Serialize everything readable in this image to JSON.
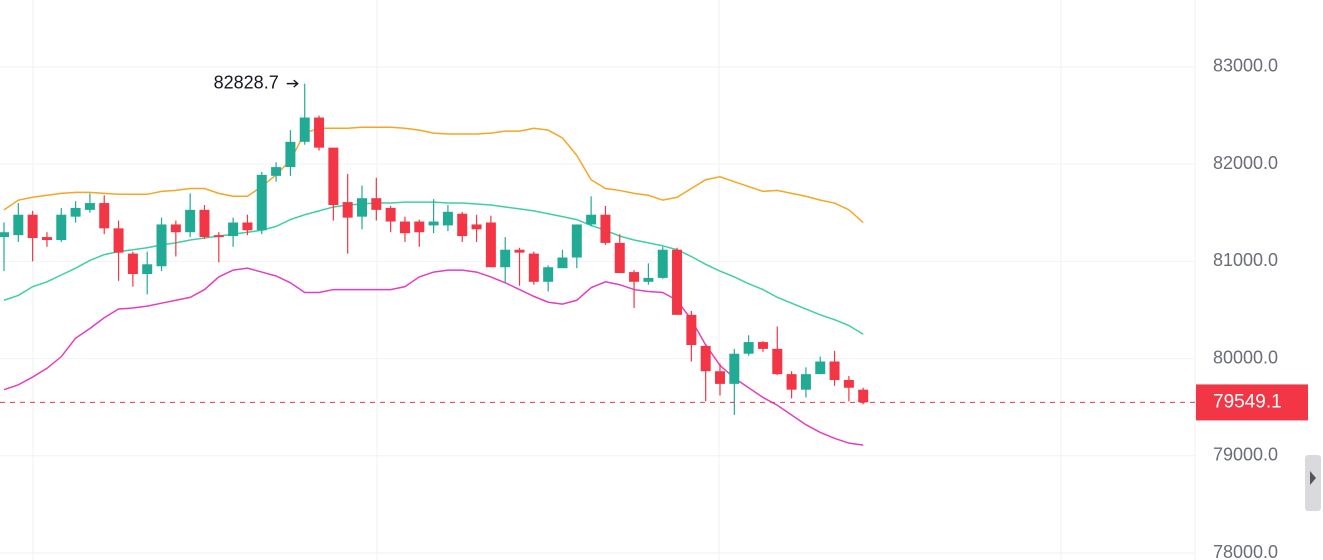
{
  "chart_data": {
    "type": "candlestick",
    "up_color": "#22ab94",
    "down_color": "#f23645",
    "grid": true,
    "last_price_line": true,
    "ylim": [
      77928,
      83689
    ],
    "yticks": [
      {
        "value": 78000,
        "label": "78000.0"
      },
      {
        "value": 79000,
        "label": "79000.0"
      },
      {
        "value": 80000,
        "label": "80000.0"
      },
      {
        "value": 81000,
        "label": "81000.0"
      },
      {
        "value": 82000,
        "label": "82000.0"
      },
      {
        "value": 83000,
        "label": "83000.0"
      }
    ],
    "open": [
      81250,
      81270,
      81480,
      81250,
      81220,
      81460,
      81530,
      81600,
      81340,
      81080,
      80870,
      80950,
      81380,
      81300,
      81530,
      81270,
      81260,
      81400,
      81320,
      81880,
      81970,
      82230,
      82480,
      82170,
      81610,
      81460,
      81650,
      81550,
      81410,
      81410,
      81370,
      81370,
      81490,
      81380,
      81400,
      80940,
      81120,
      81080,
      80790,
      80930,
      81040,
      81380,
      81480,
      81190,
      80890,
      80790,
      80830,
      81120,
      80450,
      80130,
      79870,
      79740,
      80050,
      80170,
      80100,
      79840,
      79680,
      79840,
      79970,
      79780,
      79680
    ],
    "high": [
      81400,
      81600,
      81520,
      81300,
      81550,
      81620,
      81700,
      81680,
      81420,
      81100,
      81100,
      81450,
      81420,
      81700,
      81580,
      81300,
      81450,
      81480,
      81920,
      82020,
      82350,
      82828.7,
      82500,
      82170,
      81900,
      81780,
      81860,
      81570,
      81460,
      81430,
      81640,
      81580,
      81510,
      81480,
      81470,
      81250,
      81140,
      81100,
      80960,
      81120,
      81380,
      81670,
      81570,
      81280,
      80910,
      80980,
      81150,
      81140,
      80490,
      80150,
      79950,
      80100,
      80240,
      80180,
      80330,
      79870,
      79910,
      80020,
      80080,
      79820,
      79700
    ],
    "low": [
      80900,
      81200,
      81000,
      81150,
      81200,
      81400,
      81500,
      81280,
      80800,
      80740,
      80660,
      80900,
      81050,
      81250,
      81230,
      80990,
      81150,
      81270,
      81280,
      81820,
      81880,
      82200,
      82140,
      81420,
      81080,
      81330,
      81420,
      81300,
      81200,
      81150,
      81290,
      81310,
      81200,
      81200,
      80940,
      80780,
      80750,
      80760,
      80690,
      80930,
      80930,
      81360,
      81170,
      80880,
      80520,
      80760,
      80820,
      80450,
      79970,
      79560,
      79620,
      79420,
      80030,
      80070,
      79830,
      79590,
      79600,
      79840,
      79720,
      79560,
      79530
    ],
    "close": [
      81300,
      81480,
      81240,
      81220,
      81480,
      81550,
      81600,
      81340,
      81090,
      80870,
      80970,
      81380,
      81300,
      81530,
      81250,
      81250,
      81400,
      81320,
      81890,
      81970,
      82230,
      82480,
      82170,
      81580,
      81450,
      81650,
      81530,
      81410,
      81290,
      81300,
      81410,
      81510,
      81260,
      81330,
      80940,
      81120,
      81090,
      80790,
      80940,
      81040,
      81380,
      81480,
      81190,
      80880,
      80790,
      80830,
      81120,
      80450,
      80140,
      79870,
      79740,
      80050,
      80170,
      80100,
      79840,
      79680,
      79840,
      79970,
      79780,
      79700,
      79549.1
    ],
    "lines": [
      {
        "color": "#f5a623",
        "values": [
          81530,
          81630,
          81660,
          81680,
          81700,
          81710,
          81710,
          81700,
          81690,
          81690,
          81690,
          81720,
          81730,
          81750,
          81750,
          81700,
          81670,
          81670,
          81770,
          81890,
          82040,
          82320,
          82370,
          82370,
          82370,
          82380,
          82380,
          82380,
          82370,
          82350,
          82320,
          82310,
          82310,
          82310,
          82320,
          82340,
          82340,
          82370,
          82350,
          82270,
          82090,
          81840,
          81750,
          81730,
          81700,
          81680,
          81630,
          81660,
          81750,
          81840,
          81870,
          81820,
          81770,
          81720,
          81730,
          81700,
          81670,
          81630,
          81600,
          81530,
          81400
        ]
      },
      {
        "color": "#3fcfa4",
        "values": [
          80600,
          80650,
          80740,
          80790,
          80860,
          80930,
          81010,
          81070,
          81100,
          81120,
          81140,
          81170,
          81190,
          81220,
          81240,
          81260,
          81280,
          81300,
          81320,
          81360,
          81430,
          81480,
          81520,
          81560,
          81580,
          81590,
          81600,
          81600,
          81610,
          81610,
          81610,
          81600,
          81600,
          81590,
          81580,
          81560,
          81540,
          81520,
          81490,
          81460,
          81430,
          81370,
          81320,
          81260,
          81220,
          81190,
          81160,
          81120,
          81050,
          80970,
          80900,
          80840,
          80770,
          80710,
          80630,
          80570,
          80510,
          80450,
          80400,
          80340,
          80250
        ]
      },
      {
        "color": "#e23fc0",
        "values": [
          79680,
          79730,
          79810,
          79900,
          80020,
          80210,
          80310,
          80420,
          80510,
          80520,
          80540,
          80570,
          80600,
          80630,
          80710,
          80840,
          80910,
          80930,
          80890,
          80850,
          80780,
          80680,
          80680,
          80710,
          80710,
          80710,
          80710,
          80710,
          80740,
          80840,
          80890,
          80910,
          80910,
          80890,
          80840,
          80780,
          80710,
          80640,
          80580,
          80560,
          80600,
          80730,
          80790,
          80760,
          80710,
          80690,
          80680,
          80600,
          80400,
          80140,
          79930,
          79800,
          79700,
          79600,
          79520,
          79420,
          79320,
          79240,
          79180,
          79130,
          79110
        ]
      }
    ]
  }
}
